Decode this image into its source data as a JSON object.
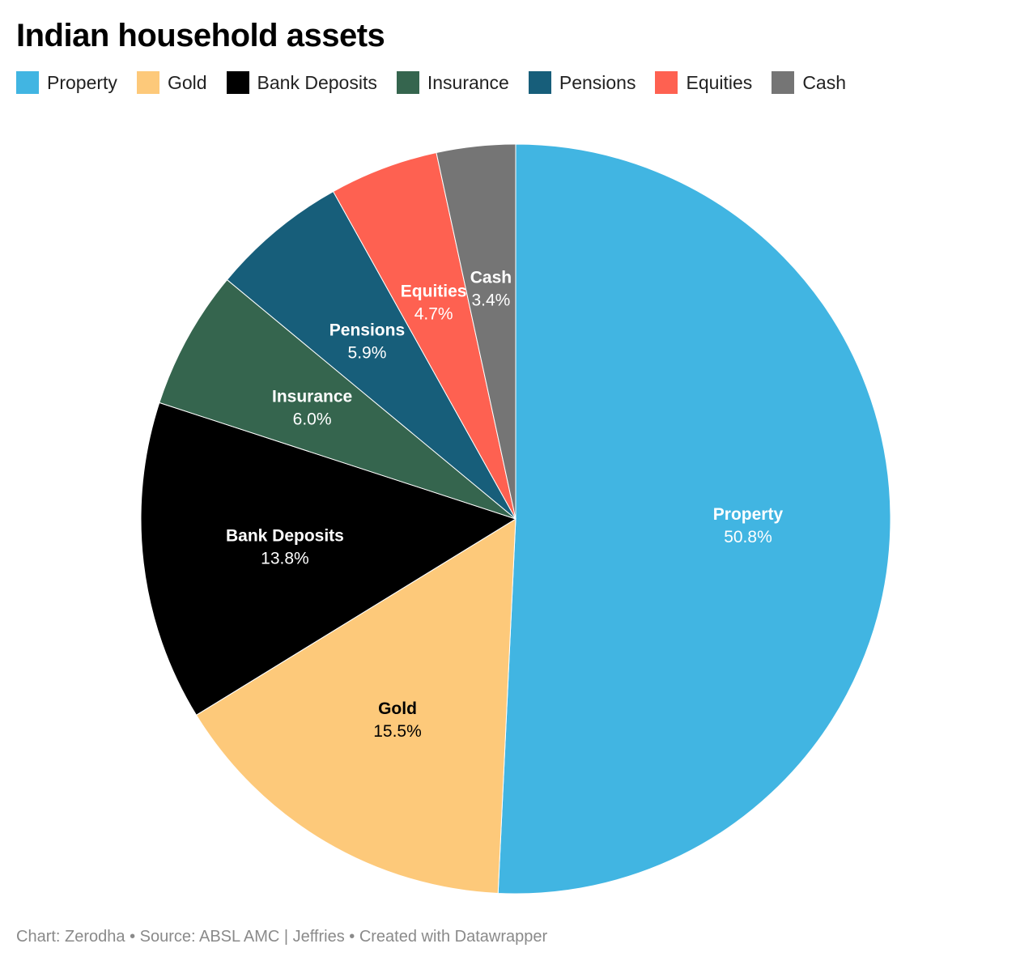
{
  "title": "Indian household assets",
  "footer": "Chart: Zerodha • Source: ABSL AMC | Jeffries • Created with Datawrapper",
  "chart_data": {
    "type": "pie",
    "title": "Indian household assets",
    "legend_position": "top-left",
    "categories": [
      "Property",
      "Gold",
      "Bank Deposits",
      "Insurance",
      "Pensions",
      "Equities",
      "Cash"
    ],
    "values": [
      50.8,
      15.5,
      13.8,
      6.0,
      5.9,
      4.7,
      3.4
    ],
    "value_labels": [
      "50.8%",
      "15.5%",
      "13.8%",
      "6.0%",
      "5.9%",
      "4.7%",
      "3.4%"
    ],
    "colors": [
      "#41b5e2",
      "#fdc97a",
      "#000000",
      "#35654e",
      "#175e7a",
      "#fe6151",
      "#757575"
    ],
    "label_colors": [
      "#ffffff",
      "#000000",
      "#ffffff",
      "#ffffff",
      "#ffffff",
      "#ffffff",
      "#ffffff"
    ],
    "direction": "clockwise-from-top"
  }
}
